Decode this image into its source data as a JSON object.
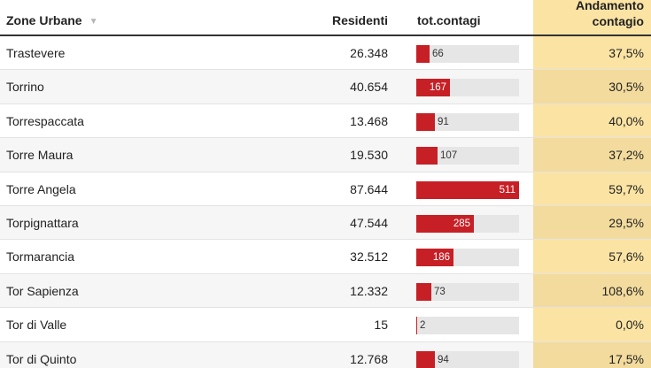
{
  "header": {
    "zone": "Zone Urbane",
    "residents": "Residenti",
    "tot_contagi": "tot.contagi",
    "andamento_line1": "Andamento",
    "andamento_line2": "contagio",
    "sort_icon": "triangle-down-icon"
  },
  "colors": {
    "bar": "#c62026",
    "track": "#e6e6e6",
    "highlight": "#fbe3a3"
  },
  "bar_max": 511,
  "rows": [
    {
      "zone": "Trastevere",
      "residents": "26.348",
      "contagi": 66,
      "andamento": "37,5%"
    },
    {
      "zone": "Torrino",
      "residents": "40.654",
      "contagi": 167,
      "andamento": "30,5%"
    },
    {
      "zone": "Torrespaccata",
      "residents": "13.468",
      "contagi": 91,
      "andamento": "40,0%"
    },
    {
      "zone": "Torre Maura",
      "residents": "19.530",
      "contagi": 107,
      "andamento": "37,2%"
    },
    {
      "zone": "Torre Angela",
      "residents": "87.644",
      "contagi": 511,
      "andamento": "59,7%"
    },
    {
      "zone": "Torpignattara",
      "residents": "47.544",
      "contagi": 285,
      "andamento": "29,5%"
    },
    {
      "zone": "Tormarancia",
      "residents": "32.512",
      "contagi": 186,
      "andamento": "57,6%"
    },
    {
      "zone": "Tor Sapienza",
      "residents": "12.332",
      "contagi": 73,
      "andamento": "108,6%"
    },
    {
      "zone": "Tor di Valle",
      "residents": "15",
      "contagi": 2,
      "andamento": "0,0%"
    },
    {
      "zone": "Tor di Quinto",
      "residents": "12.768",
      "contagi": 94,
      "andamento": "17,5%"
    }
  ]
}
